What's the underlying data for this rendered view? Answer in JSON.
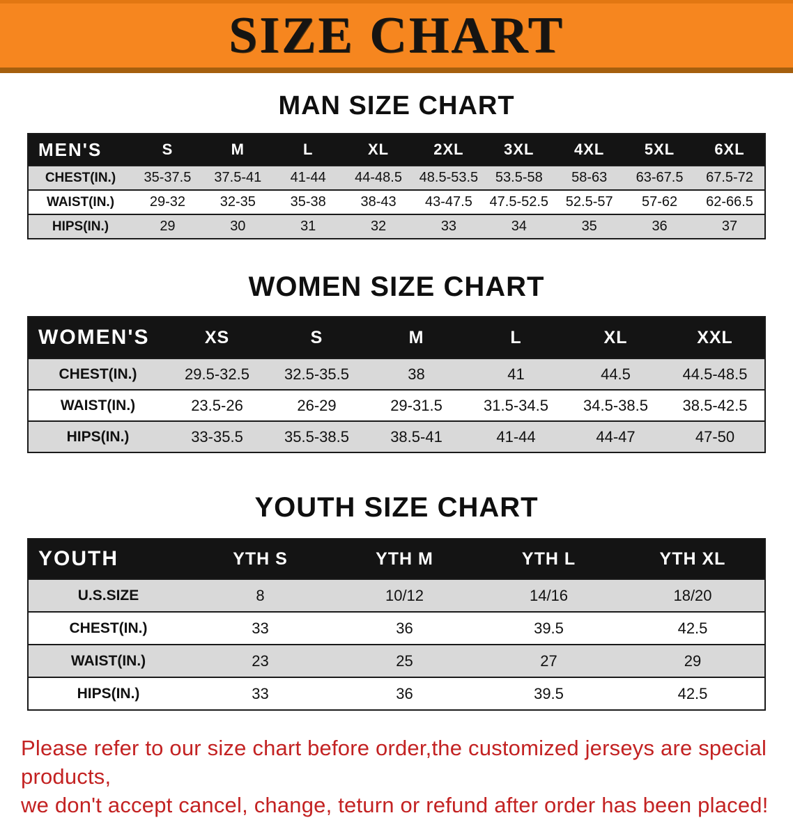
{
  "banner": {
    "title": "SIZE CHART",
    "background_color": "#f6861f",
    "text_color": "#161412"
  },
  "chart_data": [
    {
      "type": "table",
      "name": "men",
      "title": "MAN SIZE CHART",
      "header_label": "MEN'S",
      "columns": [
        "S",
        "M",
        "L",
        "XL",
        "2XL",
        "3XL",
        "4XL",
        "5XL",
        "6XL"
      ],
      "rows": [
        {
          "label": "CHEST(IN.)",
          "values": [
            "35-37.5",
            "37.5-41",
            "41-44",
            "44-48.5",
            "48.5-53.5",
            "53.5-58",
            "58-63",
            "63-67.5",
            "67.5-72"
          ]
        },
        {
          "label": "WAIST(IN.)",
          "values": [
            "29-32",
            "32-35",
            "35-38",
            "38-43",
            "43-47.5",
            "47.5-52.5",
            "52.5-57",
            "57-62",
            "62-66.5"
          ]
        },
        {
          "label": "HIPS(IN.)",
          "values": [
            "29",
            "30",
            "31",
            "32",
            "33",
            "34",
            "35",
            "36",
            "37"
          ]
        }
      ]
    },
    {
      "type": "table",
      "name": "women",
      "title": "WOMEN SIZE CHART",
      "header_label": "WOMEN'S",
      "columns": [
        "XS",
        "S",
        "M",
        "L",
        "XL",
        "XXL"
      ],
      "rows": [
        {
          "label": "CHEST(IN.)",
          "values": [
            "29.5-32.5",
            "32.5-35.5",
            "38",
            "41",
            "44.5",
            "44.5-48.5"
          ]
        },
        {
          "label": "WAIST(IN.)",
          "values": [
            "23.5-26",
            "26-29",
            "29-31.5",
            "31.5-34.5",
            "34.5-38.5",
            "38.5-42.5"
          ]
        },
        {
          "label": "HIPS(IN.)",
          "values": [
            "33-35.5",
            "35.5-38.5",
            "38.5-41",
            "41-44",
            "44-47",
            "47-50"
          ]
        }
      ]
    },
    {
      "type": "table",
      "name": "youth",
      "title": "YOUTH SIZE CHART",
      "header_label": "YOUTH",
      "columns": [
        "YTH S",
        "YTH M",
        "YTH L",
        "YTH XL"
      ],
      "rows": [
        {
          "label": "U.S.SIZE",
          "values": [
            "8",
            "10/12",
            "14/16",
            "18/20"
          ]
        },
        {
          "label": "CHEST(IN.)",
          "values": [
            "33",
            "36",
            "39.5",
            "42.5"
          ]
        },
        {
          "label": "WAIST(IN.)",
          "values": [
            "23",
            "25",
            "27",
            "29"
          ]
        },
        {
          "label": "HIPS(IN.)",
          "values": [
            "33",
            "36",
            "39.5",
            "42.5"
          ]
        }
      ]
    }
  ],
  "footer": {
    "line1": "Please refer to our size chart before order,the customized jerseys are special products,",
    "line2": "we don't accept cancel, change, teturn or refund after order has been placed!",
    "text_color": "#c32222"
  },
  "colors": {
    "table_header_bg": "#141414",
    "row_stripe": "#d9d9d9",
    "table_border": "#1a1a1a"
  }
}
